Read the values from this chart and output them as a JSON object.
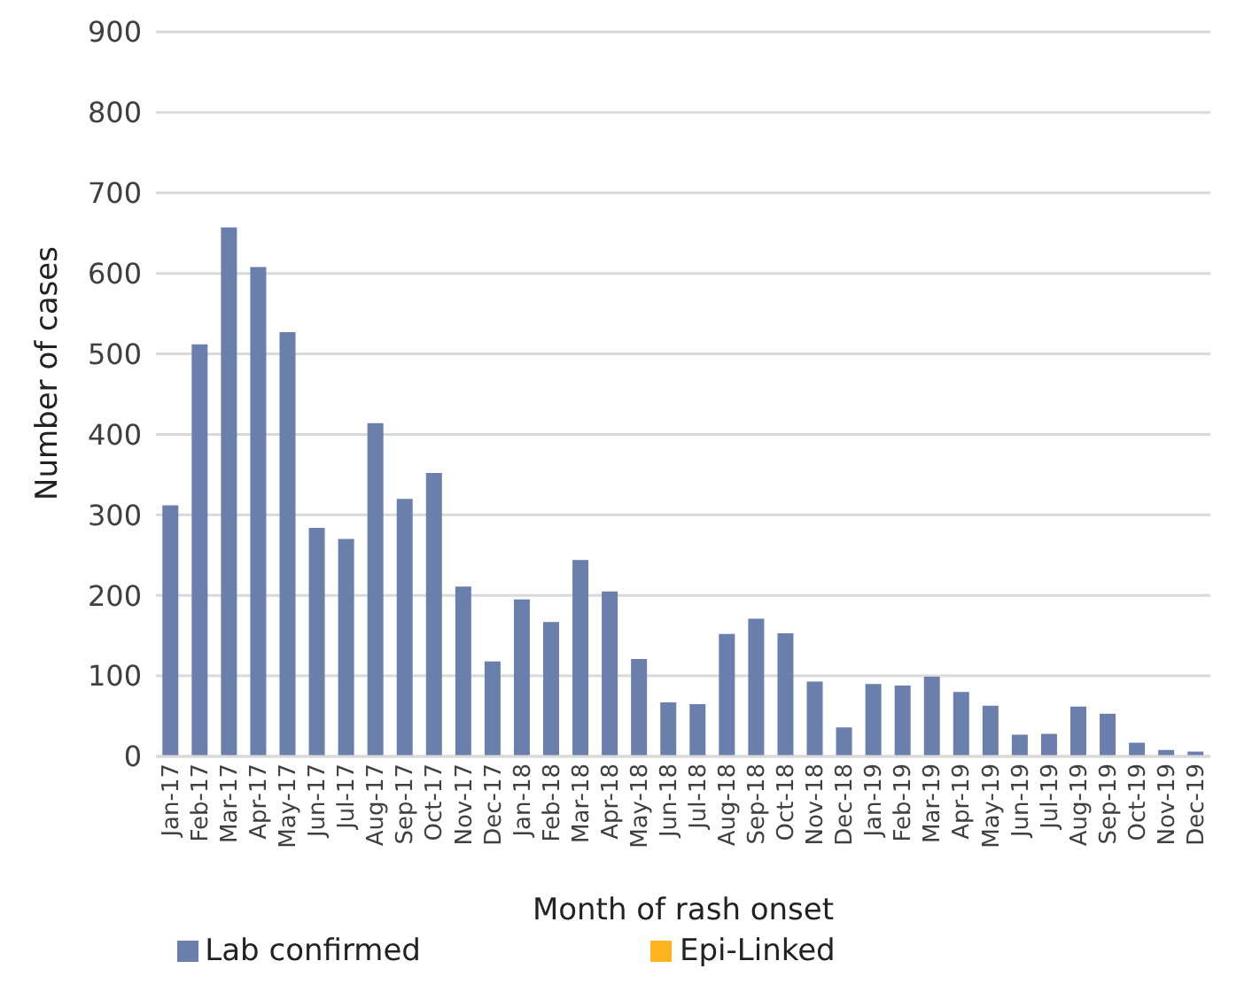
{
  "chart_data": {
    "type": "bar",
    "stacked": true,
    "xlabel": "Month of rash onset",
    "ylabel": "Number of cases",
    "categories": [
      "Jan-17",
      "Feb-17",
      "Mar-17",
      "Apr-17",
      "May-17",
      "Jun-17",
      "Jul-17",
      "Aug-17",
      "Sep-17",
      "Oct-17",
      "Nov-17",
      "Dec-17",
      "Jan-18",
      "Feb-18",
      "Mar-18",
      "Apr-18",
      "May-18",
      "Jun-18",
      "Jul-18",
      "Aug-18",
      "Sep-18",
      "Oct-18",
      "Nov-18",
      "Dec-18",
      "Jan-19",
      "Feb-19",
      "Mar-19",
      "Apr-19",
      "May-19",
      "Jun-19",
      "Jul-19",
      "Aug-19",
      "Sep-19",
      "Oct-19",
      "Nov-19",
      "Dec-19"
    ],
    "series": [
      {
        "name": "Lab confirmed",
        "color": "#6a7fab",
        "values": [
          312,
          512,
          657,
          608,
          527,
          284,
          270,
          414,
          320,
          352,
          211,
          118,
          195,
          167,
          244,
          205,
          121,
          67,
          65,
          152,
          171,
          153,
          93,
          36,
          90,
          88,
          99,
          80,
          63,
          27,
          28,
          62,
          53,
          17,
          8,
          6
        ]
      },
      {
        "name": "Epi-Linked",
        "color": "#ffb41f",
        "values": [
          0,
          0,
          0,
          0,
          0,
          0,
          0,
          0,
          0,
          0,
          0,
          0,
          0,
          0,
          0,
          0,
          0,
          0,
          0,
          0,
          0,
          0,
          0,
          0,
          0,
          0,
          0,
          0,
          0,
          0,
          0,
          0,
          0,
          0,
          0,
          0
        ]
      }
    ],
    "ylim": [
      0,
      900
    ],
    "yticks": [
      0,
      100,
      200,
      300,
      400,
      500,
      600,
      700,
      800,
      900
    ],
    "grid": "y",
    "legend": "bottom"
  }
}
